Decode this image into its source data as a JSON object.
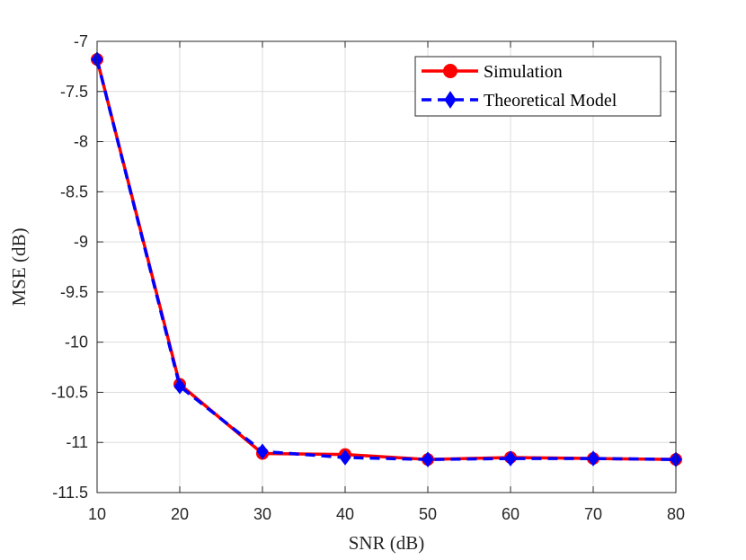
{
  "chart_data": {
    "type": "line",
    "title": "",
    "xlabel": "SNR (dB)",
    "ylabel": "MSE (dB)",
    "xlim": [
      10,
      80
    ],
    "ylim": [
      -11.5,
      -7
    ],
    "grid": true,
    "legend_position": "top-right",
    "x_ticks": [
      10,
      20,
      30,
      40,
      50,
      60,
      70,
      80
    ],
    "x_tick_labels": [
      "10",
      "20",
      "30",
      "40",
      "50",
      "60",
      "70",
      "80"
    ],
    "y_ticks": [
      -7,
      -7.5,
      -8,
      -8.5,
      -9,
      -9.5,
      -10,
      -10.5,
      -11,
      -11.5
    ],
    "y_tick_labels": [
      "-7",
      "-7.5",
      "-8",
      "-8.5",
      "-9",
      "-9.5",
      "-10",
      "-10.5",
      "-11",
      "-11.5"
    ],
    "x": [
      10,
      20,
      30,
      40,
      50,
      60,
      70,
      80
    ],
    "series": [
      {
        "name": "Simulation",
        "color": "#ff0000",
        "line_style": "solid",
        "marker": "circle",
        "values": [
          -7.18,
          -10.42,
          -11.11,
          -11.12,
          -11.17,
          -11.15,
          -11.16,
          -11.17
        ]
      },
      {
        "name": "Theoretical Model",
        "color": "#0000ff",
        "line_style": "dashed",
        "marker": "diamond",
        "values": [
          -7.18,
          -10.44,
          -11.09,
          -11.15,
          -11.17,
          -11.16,
          -11.16,
          -11.17
        ]
      }
    ]
  }
}
